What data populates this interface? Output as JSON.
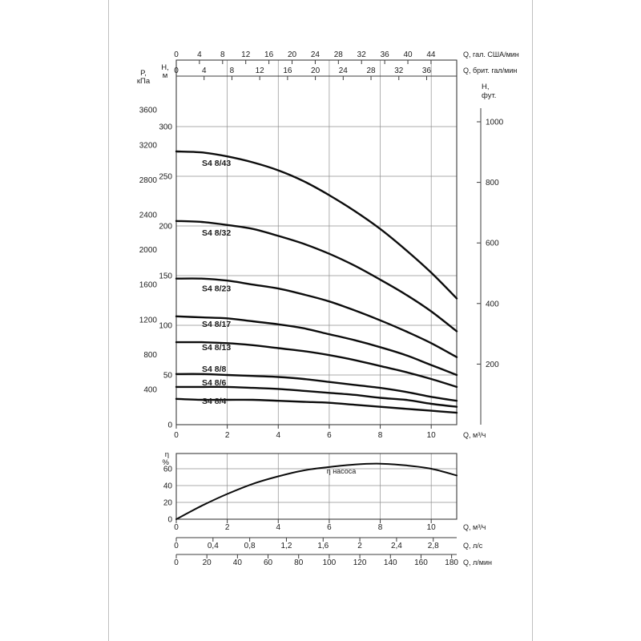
{
  "page": {
    "background": "#ffffff",
    "page_edge_color": "#bfbfbf",
    "grid_color": "#8f8f8f",
    "axis_color": "#3c3c3c",
    "curve_color": "#0c0c0c",
    "text_color": "#1b1b1b"
  },
  "chart_data": [
    {
      "type": "line",
      "ylabel": "H, м",
      "x_m3h": [
        0,
        1,
        2,
        3,
        4,
        5,
        6,
        7,
        8,
        9,
        10,
        11
      ],
      "x_range_m3h": [
        0,
        11
      ],
      "axes": {
        "top_us_gpm": {
          "label": "Q, гал. США/мин",
          "m3h_per_unit": 0.2271,
          "ticks": [
            0,
            4,
            8,
            12,
            16,
            20,
            24,
            28,
            32,
            36,
            40,
            44
          ]
        },
        "top_imp_gpm": {
          "label": "Q, брит. гал/мин",
          "m3h_per_unit": 0.2728,
          "ticks": [
            0,
            4,
            8,
            12,
            16,
            20,
            24,
            28,
            32,
            36
          ]
        },
        "bottom_m3h": {
          "label": "Q, м³/ч",
          "ticks": [
            0,
            2,
            4,
            6,
            8,
            10
          ]
        },
        "left_kpa": {
          "label_lines": [
            "P,",
            "кПа"
          ],
          "ticks": [
            3600,
            3200,
            2800,
            2400,
            2000,
            1600,
            1200,
            800,
            400
          ]
        },
        "left_m": {
          "label_lines": [
            "H,",
            "м"
          ],
          "ticks": [
            300,
            250,
            200,
            150,
            100,
            50,
            0
          ]
        },
        "right_ft": {
          "label_lines": [
            "H,",
            "фут."
          ],
          "ticks": [
            1000,
            800,
            600,
            400,
            200
          ]
        }
      },
      "series": [
        {
          "name": "S4 8/43",
          "values": [
            275,
            274,
            270,
            264,
            256,
            245,
            231,
            215,
            197,
            176,
            153,
            127
          ]
        },
        {
          "name": "S4 8/32",
          "values": [
            205,
            204,
            201,
            197,
            190,
            182,
            172,
            160,
            146,
            131,
            114,
            94
          ]
        },
        {
          "name": "S4 8/23",
          "values": [
            147,
            147,
            145,
            141,
            137,
            131,
            124,
            115,
            105,
            94,
            82,
            68
          ]
        },
        {
          "name": "S4 8/17",
          "values": [
            109,
            108,
            107,
            104,
            101,
            97,
            91,
            85,
            78,
            70,
            60,
            50
          ]
        },
        {
          "name": "S4 8/13",
          "values": [
            83,
            83,
            82,
            80,
            77,
            74,
            70,
            65,
            59,
            53,
            46,
            38
          ]
        },
        {
          "name": "S4 8/8",
          "values": [
            51,
            51,
            50,
            49,
            48,
            46,
            43,
            40,
            37,
            33,
            28,
            24
          ]
        },
        {
          "name": "S4 8/6",
          "values": [
            38,
            38,
            38,
            37,
            36,
            34,
            32,
            30,
            27,
            25,
            21,
            18
          ]
        },
        {
          "name": "S4 8/4",
          "values": [
            26,
            25,
            25,
            25,
            24,
            23,
            22,
            20,
            18,
            16,
            14,
            12
          ]
        }
      ]
    },
    {
      "type": "line",
      "ylabel": "η %",
      "x_m3h": [
        0,
        1,
        2,
        3,
        4,
        5,
        6,
        7,
        8,
        9,
        10,
        11
      ],
      "axes": {
        "left_pct": {
          "label_lines": [
            "η",
            "%"
          ],
          "ticks": [
            60,
            40,
            20,
            0
          ]
        },
        "bottom_m3h": {
          "label": "Q, м³/ч",
          "ticks": [
            0,
            2,
            4,
            6,
            8,
            10
          ]
        },
        "bottom_l_s": {
          "label": "Q, л/с",
          "m3h_per_unit": 3.6,
          "ticks": [
            {
              "v": 0,
              "t": "0"
            },
            {
              "v": 0.4,
              "t": "0,4"
            },
            {
              "v": 0.8,
              "t": "0,8"
            },
            {
              "v": 1.2,
              "t": "1,2"
            },
            {
              "v": 1.6,
              "t": "1,6"
            },
            {
              "v": 2,
              "t": "2"
            },
            {
              "v": 2.4,
              "t": "2,4"
            },
            {
              "v": 2.8,
              "t": "2,8"
            }
          ]
        },
        "bottom_l_min": {
          "label": "Q, л/мин",
          "m3h_per_unit": 0.06,
          "ticks": [
            0,
            20,
            40,
            60,
            80,
            100,
            120,
            140,
            160,
            180
          ]
        }
      },
      "series": [
        {
          "name": "η насоса",
          "values": [
            0,
            16,
            30,
            42,
            51,
            58,
            62,
            65,
            66,
            64,
            60,
            52
          ]
        }
      ]
    }
  ]
}
